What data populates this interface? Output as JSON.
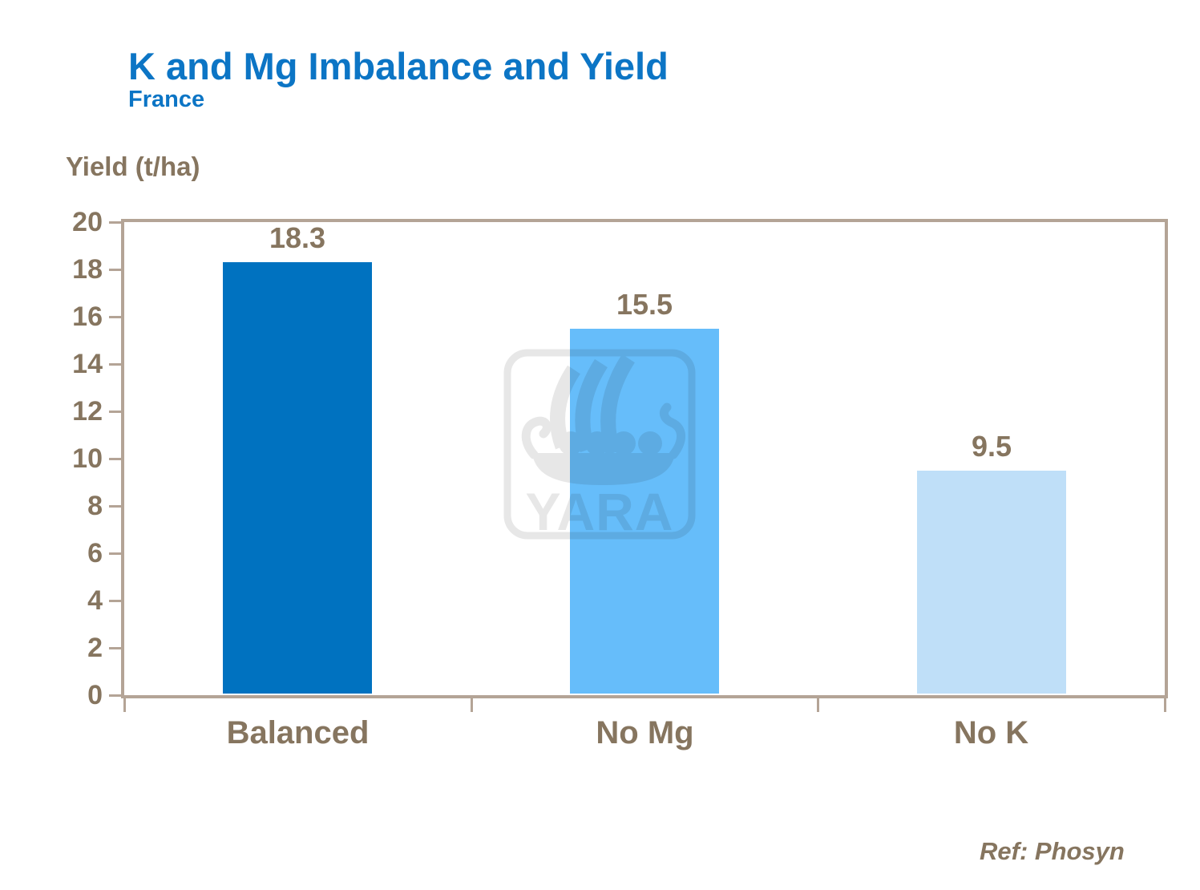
{
  "slide": {
    "title": "K and Mg Imbalance and Yield",
    "subtitle": "France",
    "footer_ref": "Ref: Phosyn"
  },
  "chart_data": {
    "type": "bar",
    "title": "K and Mg Imbalance and Yield",
    "subtitle": "France",
    "ylabel": "Yield (t/ha)",
    "xlabel": "",
    "categories": [
      "Balanced",
      "No Mg",
      "No K"
    ],
    "values": [
      18.3,
      15.5,
      9.5
    ],
    "value_labels": [
      "18.3",
      "15.5",
      "9.5"
    ],
    "bar_colors": [
      "#0072c0",
      "#66bdfa",
      "#bfdff8"
    ],
    "ylim": [
      0,
      20
    ],
    "yticks": [
      0,
      2,
      4,
      6,
      8,
      10,
      12,
      14,
      16,
      18,
      20
    ],
    "grid": false,
    "legend": false
  },
  "watermark": {
    "label": "YARA",
    "color": "#e7e7e7"
  },
  "colors": {
    "title_blue": "#0c75c5",
    "text_brown": "#86755f",
    "frame_tan": "#b4a496"
  }
}
